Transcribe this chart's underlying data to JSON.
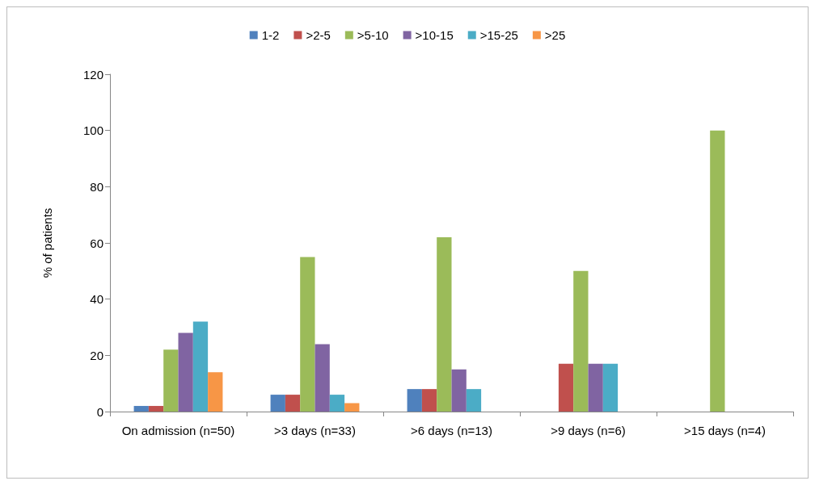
{
  "chart_data": {
    "type": "bar",
    "ylabel": "% of patients",
    "categories": [
      "On admission (n=50)",
      ">3 days (n=33)",
      ">6 days (n=13)",
      ">9 days (n=6)",
      ">15 days (n=4)"
    ],
    "series": [
      {
        "name": "1-2",
        "color": "#4f81bd",
        "values": [
          2,
          6,
          8,
          0,
          0
        ]
      },
      {
        "name": ">2-5",
        "color": "#c0504d",
        "values": [
          2,
          6,
          8,
          17,
          0
        ]
      },
      {
        "name": ">5-10",
        "color": "#9bbb59",
        "values": [
          22,
          55,
          62,
          50,
          100
        ]
      },
      {
        "name": ">10-15",
        "color": "#8064a2",
        "values": [
          28,
          24,
          15,
          17,
          0
        ]
      },
      {
        "name": ">15-25",
        "color": "#4bacc6",
        "values": [
          32,
          6,
          8,
          17,
          0
        ]
      },
      {
        "name": ">25",
        "color": "#f79646",
        "values": [
          14,
          3,
          0,
          0,
          0
        ]
      }
    ],
    "ylim": [
      0,
      120
    ],
    "yticks": [
      0,
      20,
      40,
      60,
      80,
      100,
      120
    ],
    "grid": false,
    "legend": "top"
  }
}
